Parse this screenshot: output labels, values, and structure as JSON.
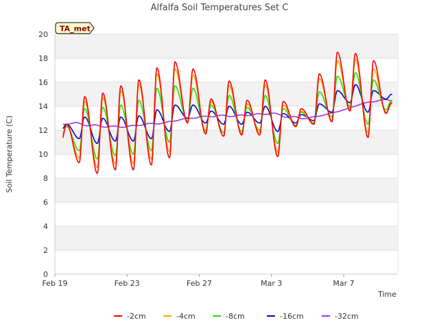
{
  "chart_data": {
    "type": "line",
    "title": "Alfalfa Soil Temperatures Set C",
    "xlabel": "Time",
    "ylabel": "Soil Temperature (C)",
    "badge": "TA_met",
    "ylim": [
      0,
      20
    ],
    "yticks": [
      0,
      2,
      4,
      6,
      8,
      10,
      12,
      14,
      16,
      18,
      20
    ],
    "xlim": [
      "2022-02-19",
      "2022-03-10"
    ],
    "xticks": [
      {
        "date": "2022-02-19",
        "label": "Feb 19"
      },
      {
        "date": "2022-02-23",
        "label": "Feb 23"
      },
      {
        "date": "2022-02-27",
        "label": "Feb 27"
      },
      {
        "date": "2022-03-03",
        "label": "Mar 3"
      },
      {
        "date": "2022-03-07",
        "label": "Mar 7"
      }
    ],
    "legend_position": "bottom",
    "grid": "horizontal bands",
    "x": [
      "2022-02-19",
      "2022-02-20",
      "2022-02-21",
      "2022-02-22",
      "2022-02-23",
      "2022-02-24",
      "2022-02-25",
      "2022-02-26",
      "2022-02-27",
      "2022-02-28",
      "2022-03-01",
      "2022-03-02",
      "2022-03-03",
      "2022-03-04",
      "2022-03-05",
      "2022-03-06",
      "2022-03-07",
      "2022-03-08",
      "2022-03-09"
    ],
    "series": [
      {
        "name": "-2cm",
        "color": "#ff0000",
        "daily_min": [
          11.0,
          9.3,
          8.4,
          8.7,
          8.7,
          9.1,
          9.7,
          12.6,
          11.7,
          11.5,
          11.6,
          11.6,
          9.8,
          12.3,
          12.5,
          12.7,
          13.6,
          11.4,
          13.4
        ],
        "daily_max": [
          12.5,
          14.8,
          15.1,
          15.7,
          16.2,
          17.2,
          17.7,
          17.1,
          14.6,
          16.1,
          14.5,
          16.2,
          14.4,
          13.8,
          16.7,
          18.5,
          18.4,
          17.8,
          14.3
        ]
      },
      {
        "name": "-4cm",
        "color": "#ffa500",
        "daily_min": [
          11.3,
          9.7,
          8.9,
          9.2,
          9.2,
          9.6,
          10.2,
          12.7,
          11.9,
          11.5,
          11.7,
          11.8,
          10.2,
          12.3,
          12.5,
          12.8,
          13.7,
          11.8,
          13.5
        ],
        "daily_max": [
          12.4,
          14.4,
          14.7,
          15.3,
          15.8,
          16.7,
          17.1,
          16.6,
          14.4,
          15.7,
          14.2,
          15.8,
          14.1,
          13.6,
          16.3,
          17.8,
          17.9,
          17.1,
          14.2
        ]
      },
      {
        "name": "-8cm",
        "color": "#22dd00",
        "daily_min": [
          11.5,
          10.3,
          9.6,
          9.9,
          10.0,
          10.3,
          11.0,
          12.8,
          12.0,
          11.8,
          11.9,
          12.0,
          10.9,
          12.4,
          12.6,
          13.1,
          14.0,
          12.5,
          13.7
        ],
        "daily_max": [
          12.3,
          13.8,
          13.9,
          14.1,
          14.5,
          15.5,
          15.7,
          15.5,
          14.1,
          14.9,
          13.9,
          14.9,
          13.8,
          13.5,
          15.2,
          16.5,
          16.8,
          16.2,
          14.5
        ]
      },
      {
        "name": "-16cm",
        "color": "#0000cc",
        "daily_min": [
          12.0,
          11.3,
          10.9,
          11.1,
          11.1,
          11.3,
          11.9,
          13.0,
          12.6,
          12.5,
          12.5,
          12.6,
          11.9,
          12.6,
          12.8,
          13.5,
          14.3,
          13.5,
          14.6
        ],
        "daily_max": [
          12.5,
          13.1,
          13.0,
          13.1,
          13.2,
          13.7,
          14.1,
          14.1,
          13.6,
          14.0,
          13.5,
          14.0,
          13.4,
          13.3,
          14.2,
          15.3,
          15.8,
          15.3,
          15.0
        ]
      },
      {
        "name": "-32cm",
        "color": "#9933ee",
        "values": [
          12.4,
          12.6,
          12.4,
          12.3,
          12.3,
          12.5,
          12.6,
          12.9,
          13.1,
          13.2,
          13.2,
          13.3,
          13.4,
          13.1,
          13.0,
          13.3,
          13.7,
          14.2,
          14.5
        ]
      }
    ]
  }
}
